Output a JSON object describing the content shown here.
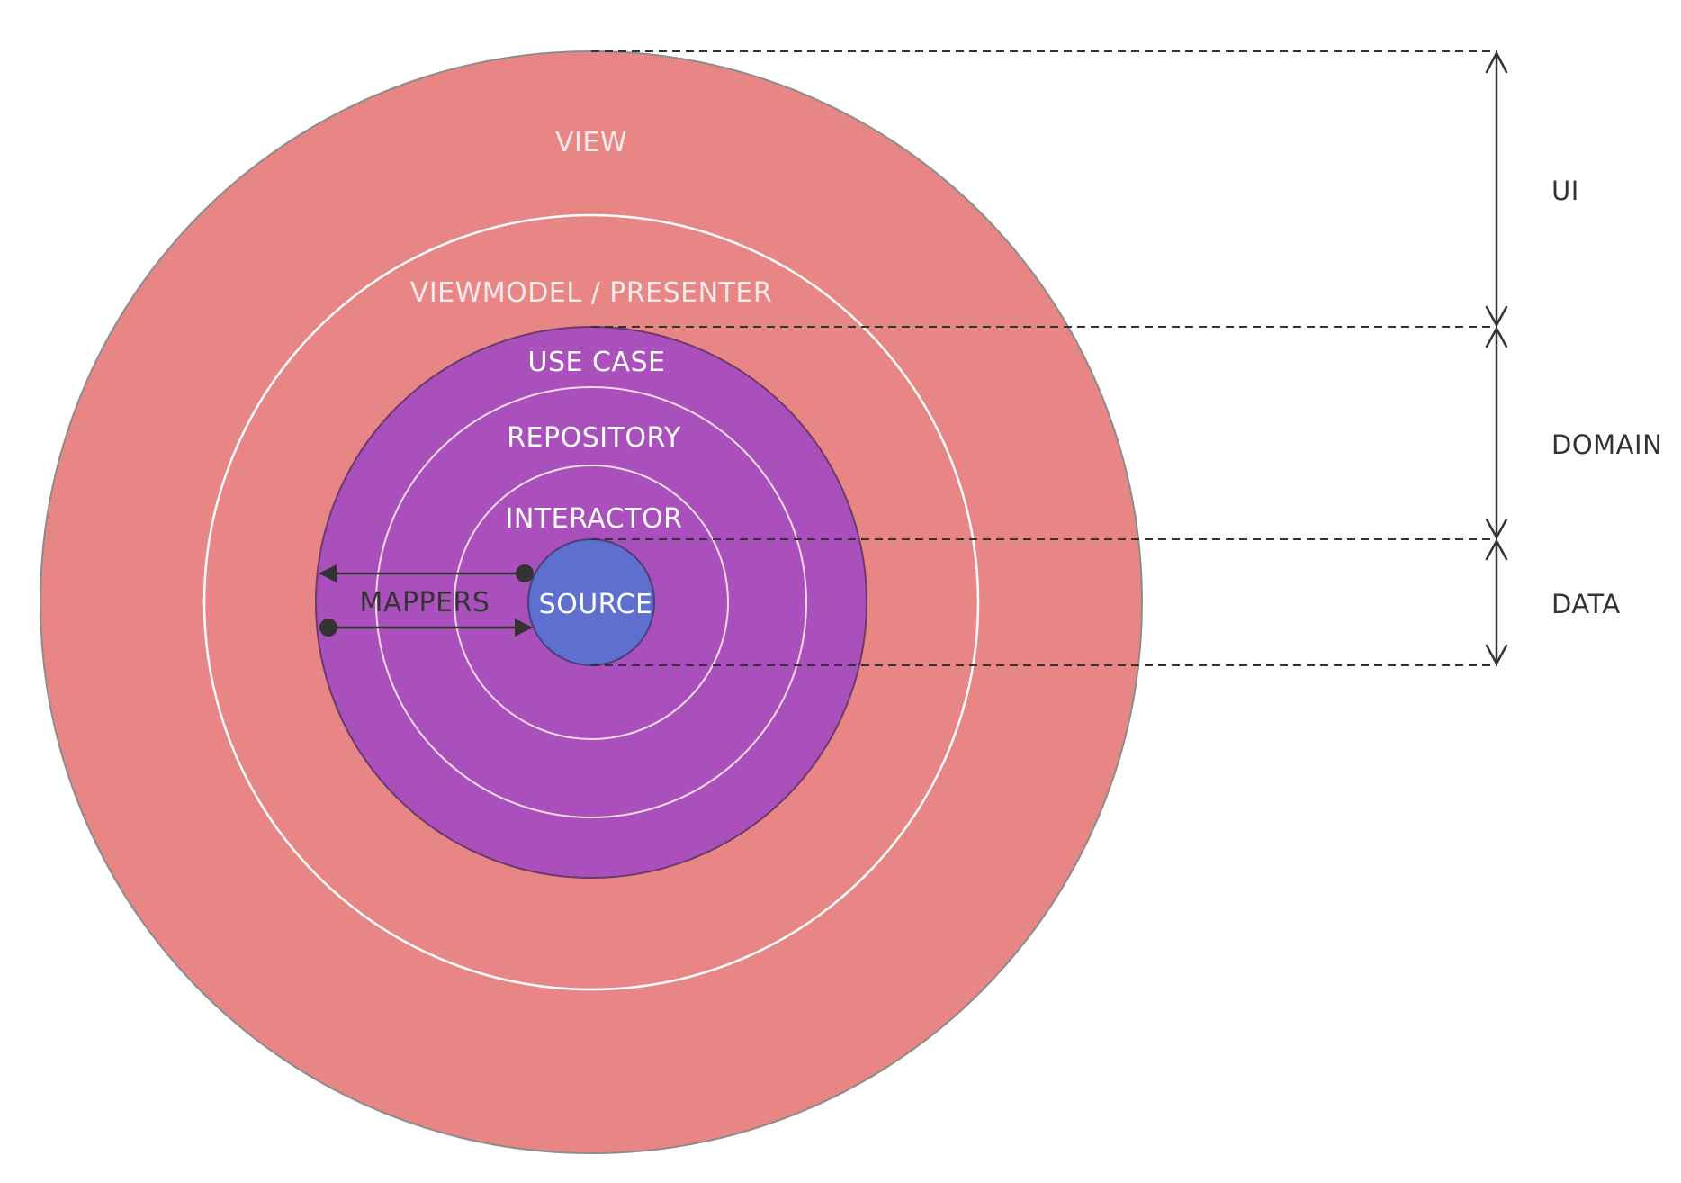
{
  "layers": {
    "view": "VIEW",
    "viewmodel": "VIEWMODEL / PRESENTER",
    "use_case": "USE CASE",
    "repository": "REPOSITORY",
    "interactor": "INTERACTOR",
    "source": "SOURCE",
    "mappers": "MAPPERS"
  },
  "bands": {
    "ui": "UI",
    "domain": "DOMAIN",
    "data": "DATA"
  },
  "colors": {
    "outer": "#e88686",
    "domain": "#aa50bd",
    "source": "#5e6fcf",
    "lines": "#333333"
  }
}
